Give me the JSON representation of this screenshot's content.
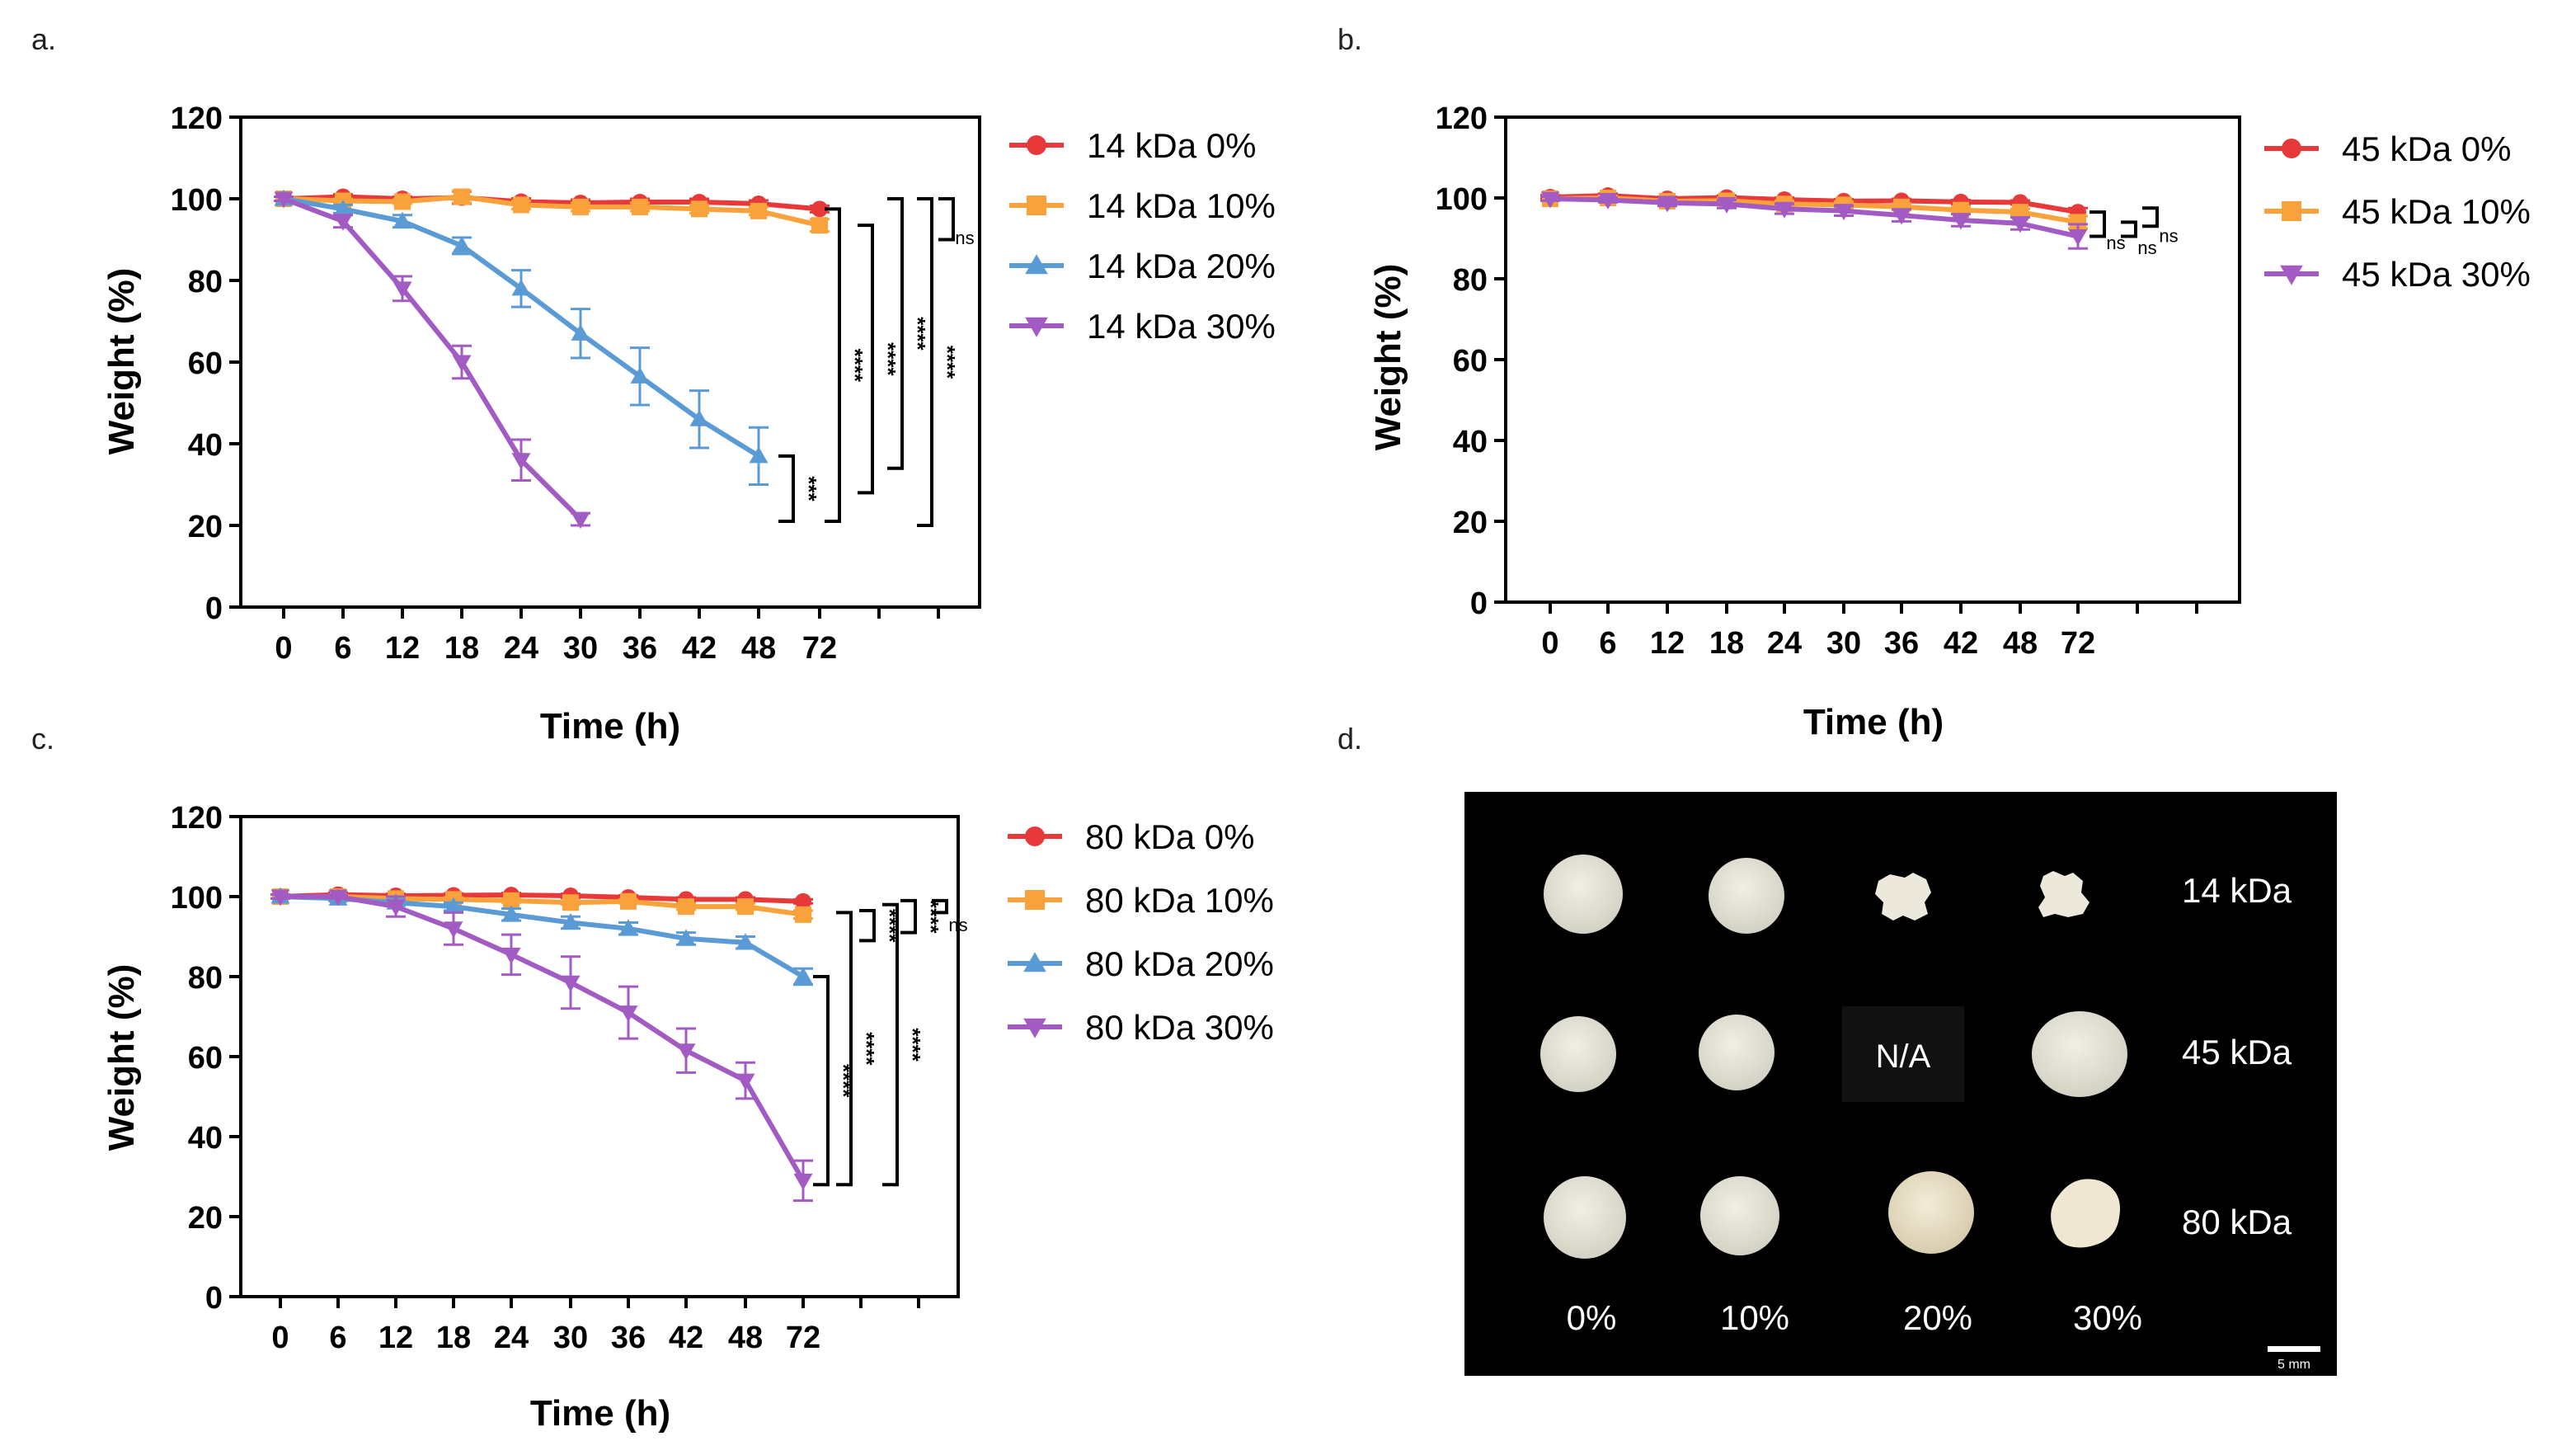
{
  "panel_labels": [
    "a.",
    "b.",
    "c.",
    "d."
  ],
  "chart_data": [
    {
      "type": "line",
      "title": "",
      "xlabel": "Time (h)",
      "ylabel": "Weight (%)",
      "ylim": [
        0,
        120
      ],
      "yticks": [
        0,
        20,
        40,
        60,
        80,
        100,
        120
      ],
      "x": [
        0,
        6,
        12,
        18,
        24,
        30,
        36,
        42,
        48,
        72
      ],
      "xtick_labels": [
        "0",
        "6",
        "12",
        "18",
        "24",
        "30",
        "36",
        "42",
        "48",
        "72"
      ],
      "legend_position": "right",
      "series": [
        {
          "name": "14 kDa 0%",
          "color": "#e8393a",
          "marker": "circle",
          "values": [
            100,
            100.5,
            100,
            100.3,
            99.3,
            99,
            99.2,
            99.2,
            98.8,
            97.5
          ],
          "errors": [
            0.5,
            0.6,
            0.5,
            1.5,
            0.8,
            0.8,
            0.8,
            0.8,
            0.8,
            0.8
          ]
        },
        {
          "name": "14 kDa 10%",
          "color": "#f9a13a",
          "marker": "square",
          "values": [
            100,
            99.5,
            99.3,
            100.5,
            98.5,
            98,
            98,
            97.5,
            97,
            93.5
          ],
          "errors": [
            0.5,
            0.5,
            0.5,
            1.5,
            1,
            1,
            1,
            1,
            1,
            1.5
          ]
        },
        {
          "name": "14 kDa 20%",
          "color": "#5b9bd5",
          "marker": "triangle-up",
          "values": [
            100,
            97.5,
            94.5,
            88.5,
            78,
            67,
            56.5,
            46,
            37,
            null
          ],
          "errors": [
            0.5,
            1,
            1.5,
            2,
            4.5,
            6,
            7,
            7,
            7,
            null
          ]
        },
        {
          "name": "14 kDa 30%",
          "color": "#a35bc4",
          "marker": "triangle-down",
          "values": [
            100,
            94.5,
            78,
            60,
            36,
            21.5,
            null,
            null,
            null,
            null
          ],
          "errors": [
            0.5,
            1.5,
            3,
            4,
            5,
            1.5,
            null,
            null,
            null,
            null
          ]
        }
      ],
      "significance": [
        "***",
        "****",
        "****",
        "****",
        "****",
        "ns"
      ]
    },
    {
      "type": "line",
      "title": "",
      "xlabel": "Time (h)",
      "ylabel": "Weight (%)",
      "ylim": [
        0,
        120
      ],
      "yticks": [
        0,
        20,
        40,
        60,
        80,
        100,
        120
      ],
      "x": [
        0,
        6,
        12,
        18,
        24,
        30,
        36,
        42,
        48,
        72
      ],
      "xtick_labels": [
        "0",
        "6",
        "12",
        "18",
        "24",
        "30",
        "36",
        "42",
        "48",
        "72"
      ],
      "legend_position": "right",
      "series": [
        {
          "name": "45 kDa 0%",
          "color": "#e8393a",
          "marker": "circle",
          "values": [
            100.2,
            100.6,
            99.8,
            100.1,
            99.6,
            99.2,
            99.3,
            99,
            98.9,
            96.5
          ],
          "errors": [
            0.5,
            0.5,
            0.5,
            0.5,
            0.5,
            0.5,
            0.5,
            0.5,
            0.5,
            1
          ]
        },
        {
          "name": "45 kDa 10%",
          "color": "#f9a13a",
          "marker": "square",
          "values": [
            99.8,
            100,
            99.2,
            99.3,
            98.5,
            98.3,
            97.8,
            97,
            96.5,
            94
          ],
          "errors": [
            0.5,
            0.5,
            0.5,
            0.8,
            0.8,
            0.8,
            0.8,
            0.8,
            0.8,
            1.5
          ]
        },
        {
          "name": "45 kDa 30%",
          "color": "#a35bc4",
          "marker": "triangle-down",
          "values": [
            99.8,
            99.5,
            98.8,
            98.5,
            97.3,
            96.8,
            95.7,
            94.5,
            93.7,
            90.5
          ],
          "errors": [
            0.5,
            0.6,
            0.8,
            1,
            1.2,
            1.2,
            1.5,
            1.5,
            1.5,
            3
          ]
        }
      ],
      "significance": [
        "ns",
        "ns",
        "ns"
      ]
    },
    {
      "type": "line",
      "title": "",
      "xlabel": "Time (h)",
      "ylabel": "Weight (%)",
      "ylim": [
        0,
        120
      ],
      "yticks": [
        0,
        20,
        40,
        60,
        80,
        100,
        120
      ],
      "x": [
        0,
        6,
        12,
        18,
        24,
        30,
        36,
        42,
        48,
        72
      ],
      "xtick_labels": [
        "0",
        "6",
        "12",
        "18",
        "24",
        "30",
        "36",
        "42",
        "48",
        "72"
      ],
      "legend_position": "right",
      "series": [
        {
          "name": "80 kDa 0%",
          "color": "#e8393a",
          "marker": "circle",
          "values": [
            100,
            100.5,
            100.2,
            100.3,
            100.4,
            100.2,
            99.8,
            99.3,
            99.3,
            98.8
          ],
          "errors": [
            0.5,
            0.5,
            0.5,
            0.5,
            0.5,
            0.5,
            0.5,
            0.5,
            0.5,
            0.5
          ]
        },
        {
          "name": "80 kDa 10%",
          "color": "#f9a13a",
          "marker": "square",
          "values": [
            100,
            100,
            99.5,
            99.3,
            99,
            98.5,
            98.8,
            97.5,
            97.5,
            95.5
          ],
          "errors": [
            0.5,
            0.5,
            0.5,
            0.5,
            0.5,
            0.5,
            0.5,
            0.8,
            0.8,
            1
          ]
        },
        {
          "name": "80 kDa 20%",
          "color": "#5b9bd5",
          "marker": "triangle-up",
          "values": [
            100,
            99.5,
            98.5,
            97.5,
            95.5,
            93.5,
            92,
            89.5,
            88.5,
            80
          ],
          "errors": [
            0.5,
            0.6,
            0.8,
            1,
            1.5,
            1.5,
            1.5,
            1.5,
            1.5,
            2
          ]
        },
        {
          "name": "80 kDa 30%",
          "color": "#a35bc4",
          "marker": "triangle-down",
          "values": [
            100,
            100,
            97.5,
            92,
            85.5,
            78.5,
            71,
            61.5,
            54,
            29
          ],
          "errors": [
            0.5,
            0.5,
            2.5,
            4,
            5,
            6.5,
            6.5,
            5.5,
            4.5,
            5
          ]
        }
      ],
      "significance": [
        "****",
        "****",
        "****",
        "****",
        "****",
        "ns"
      ]
    }
  ],
  "photo": {
    "row_labels": [
      "14 kDa",
      "45 kDa",
      "80 kDa"
    ],
    "column_labels": [
      "0%",
      "10%",
      "20%",
      "30%"
    ],
    "na_label": "N/A",
    "scale_label": "5 mm"
  }
}
